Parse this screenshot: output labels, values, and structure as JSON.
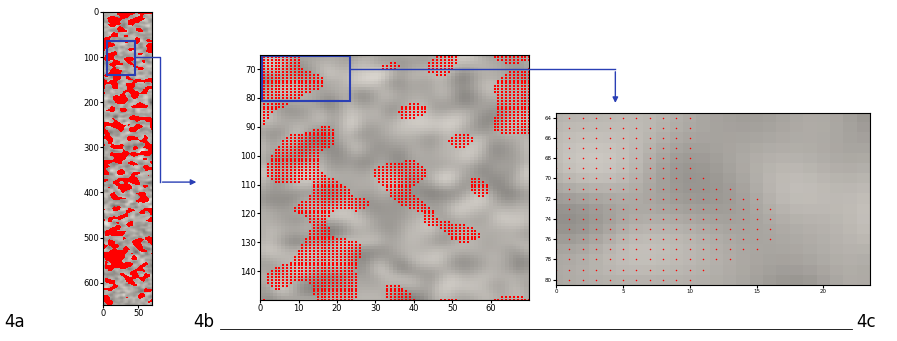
{
  "chart_data": [
    {
      "type": "image",
      "annotations": [
        "4a"
      ],
      "xlim": [
        0,
        70
      ],
      "ylim": [
        650,
        0
      ],
      "xticks": [
        0,
        50
      ],
      "yticks": [
        0,
        100,
        200,
        300,
        400,
        500,
        600
      ]
    },
    {
      "type": "image",
      "annotations": [
        "4b"
      ],
      "xlim": [
        0,
        70
      ],
      "ylim": [
        150,
        65
      ],
      "xticks": [
        0,
        10,
        20,
        30,
        40,
        50,
        60
      ],
      "yticks": [
        70,
        80,
        90,
        100,
        110,
        120,
        130,
        140
      ]
    },
    {
      "type": "image",
      "annotations": [
        "4c"
      ],
      "xlim": [
        0,
        23.5
      ],
      "ylim": [
        80.5,
        63.5
      ],
      "xticks": [
        0,
        5,
        10,
        15,
        20
      ],
      "yticks": [
        64,
        66,
        68,
        70,
        72,
        74,
        76,
        78,
        80
      ]
    }
  ]
}
